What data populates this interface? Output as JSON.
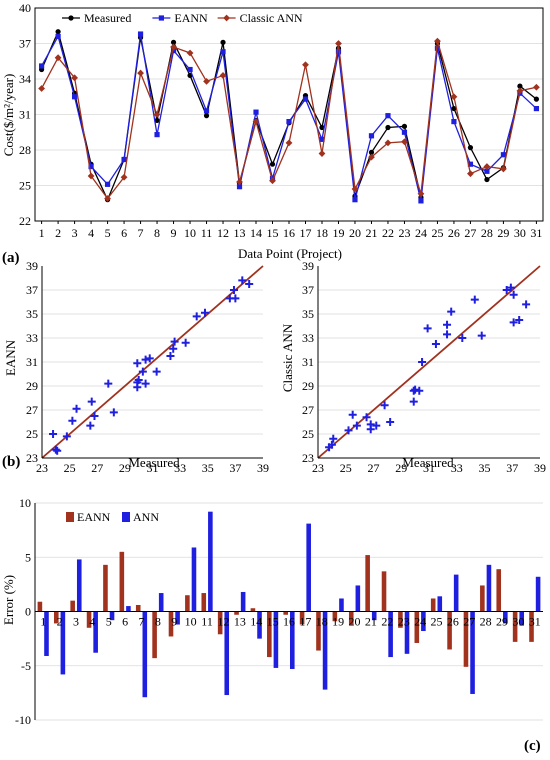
{
  "chart_data": [
    {
      "type": "line",
      "panel": "(a)",
      "xlabel": "Data Point (Project)",
      "ylabel": "Cost($/m²/year)",
      "ylim": [
        22,
        40
      ],
      "yticks": [
        "22",
        "25",
        "28",
        "31",
        "34",
        "37",
        "40"
      ],
      "x": [
        1,
        2,
        3,
        4,
        5,
        6,
        7,
        8,
        9,
        10,
        11,
        12,
        13,
        14,
        15,
        16,
        17,
        18,
        19,
        20,
        21,
        22,
        23,
        24,
        25,
        26,
        27,
        28,
        29,
        30,
        31
      ],
      "legend_position": "top-left",
      "series": [
        {
          "name": "Measured",
          "color": "#000000",
          "marker": "circle",
          "values": [
            34.8,
            38.0,
            32.8,
            26.8,
            23.8,
            27.2,
            37.5,
            30.5,
            37.1,
            34.3,
            30.9,
            37.1,
            25.2,
            30.5,
            26.8,
            30.3,
            32.6,
            29.9,
            36.6,
            24.1,
            27.8,
            29.9,
            30.0,
            24.0,
            37.0,
            31.5,
            28.2,
            25.5,
            26.5,
            33.4,
            32.3
          ]
        },
        {
          "name": "EANN",
          "color": "#1f1fe0",
          "marker": "square",
          "values": [
            35.1,
            37.6,
            32.5,
            26.6,
            25.1,
            27.2,
            37.8,
            29.3,
            36.4,
            34.8,
            31.3,
            36.3,
            24.9,
            31.2,
            25.6,
            30.4,
            32.3,
            28.9,
            36.3,
            23.8,
            29.2,
            30.9,
            29.5,
            23.7,
            36.6,
            30.4,
            26.8,
            26.2,
            27.6,
            32.8,
            31.5
          ]
        },
        {
          "name": "Classic ANN",
          "color": "#a0321e",
          "marker": "diamond",
          "values": [
            33.2,
            35.8,
            34.1,
            25.8,
            23.9,
            25.7,
            34.5,
            31.0,
            36.7,
            36.2,
            33.8,
            34.3,
            25.3,
            30.4,
            25.4,
            28.6,
            35.2,
            27.7,
            37.0,
            24.7,
            27.4,
            28.6,
            28.7,
            24.3,
            37.2,
            32.5,
            26.0,
            26.6,
            26.4,
            33.0,
            33.3
          ]
        }
      ]
    },
    {
      "type": "scatter",
      "panel": "(b)",
      "xlabel": "Measured",
      "ylabel": "EANN",
      "xlim": [
        23,
        39
      ],
      "ylim": [
        23,
        39
      ],
      "xticks": [
        "23",
        "25",
        "27",
        "29",
        "31",
        "33",
        "35",
        "37",
        "39"
      ],
      "yticks": [
        "23",
        "25",
        "27",
        "29",
        "31",
        "33",
        "35",
        "37",
        "39"
      ],
      "diagonal_color": "#a0321e",
      "points": [
        [
          23.8,
          25.0
        ],
        [
          24.0,
          23.7
        ],
        [
          24.1,
          23.6
        ],
        [
          24.8,
          24.8
        ],
        [
          25.2,
          26.1
        ],
        [
          25.5,
          27.1
        ],
        [
          26.5,
          25.7
        ],
        [
          26.6,
          27.7
        ],
        [
          26.8,
          26.5
        ],
        [
          27.8,
          29.2
        ],
        [
          28.2,
          26.8
        ],
        [
          29.9,
          30.9
        ],
        [
          29.9,
          29.3
        ],
        [
          29.9,
          28.9
        ],
        [
          30.0,
          29.5
        ],
        [
          30.3,
          30.2
        ],
        [
          30.5,
          29.2
        ],
        [
          30.5,
          31.2
        ],
        [
          30.8,
          31.3
        ],
        [
          31.3,
          30.2
        ],
        [
          32.3,
          31.5
        ],
        [
          32.5,
          32.1
        ],
        [
          32.6,
          32.7
        ],
        [
          33.4,
          32.6
        ],
        [
          34.2,
          34.8
        ],
        [
          34.8,
          35.1
        ],
        [
          36.6,
          36.3
        ],
        [
          36.9,
          37.0
        ],
        [
          37.0,
          36.3
        ],
        [
          37.5,
          37.8
        ],
        [
          38.0,
          37.5
        ]
      ]
    },
    {
      "type": "scatter",
      "panel": "(b)",
      "xlabel": "Measured",
      "ylabel": "Classic ANN",
      "xlim": [
        23,
        39
      ],
      "ylim": [
        23,
        39
      ],
      "xticks": [
        "23",
        "25",
        "27",
        "29",
        "31",
        "33",
        "35",
        "37",
        "39"
      ],
      "yticks": [
        "23",
        "25",
        "27",
        "29",
        "31",
        "33",
        "35",
        "37",
        "39"
      ],
      "diagonal_color": "#a0321e",
      "points": [
        [
          24.1,
          24.6
        ],
        [
          24.0,
          24.1
        ],
        [
          23.8,
          23.9
        ],
        [
          25.2,
          25.3
        ],
        [
          25.5,
          26.6
        ],
        [
          25.8,
          25.7
        ],
        [
          26.5,
          26.4
        ],
        [
          26.8,
          25.8
        ],
        [
          26.8,
          25.4
        ],
        [
          27.2,
          25.7
        ],
        [
          27.8,
          27.4
        ],
        [
          28.2,
          26.0
        ],
        [
          29.9,
          27.7
        ],
        [
          29.9,
          28.6
        ],
        [
          30.0,
          28.7
        ],
        [
          30.3,
          28.6
        ],
        [
          30.5,
          31.0
        ],
        [
          30.9,
          33.8
        ],
        [
          31.5,
          32.5
        ],
        [
          32.3,
          33.3
        ],
        [
          32.3,
          34.1
        ],
        [
          32.6,
          35.2
        ],
        [
          33.4,
          33.0
        ],
        [
          34.3,
          36.2
        ],
        [
          34.8,
          33.2
        ],
        [
          36.6,
          37.0
        ],
        [
          36.9,
          37.2
        ],
        [
          37.1,
          34.3
        ],
        [
          37.1,
          36.6
        ],
        [
          37.5,
          34.5
        ],
        [
          38.0,
          35.8
        ]
      ]
    },
    {
      "type": "bar",
      "panel": "(c)",
      "xlabel": "",
      "ylabel": "Error (%)",
      "ylim": [
        -10,
        10
      ],
      "yticks": [
        "-10",
        "-5",
        "0",
        "5",
        "10"
      ],
      "categories": [
        "1",
        "2",
        "3",
        "4",
        "5",
        "6",
        "7",
        "8",
        "9",
        "10",
        "11",
        "12",
        "13",
        "14",
        "15",
        "16",
        "17",
        "18",
        "19",
        "20",
        "21",
        "22",
        "23",
        "24",
        "25",
        "26",
        "27",
        "28",
        "29",
        "30",
        "31"
      ],
      "legend_position": "top-left",
      "series": [
        {
          "name": "EANN",
          "color": "#a0321e",
          "values": [
            0.9,
            -1.1,
            1.0,
            -1.5,
            4.3,
            5.5,
            0.6,
            -4.3,
            -2.3,
            1.5,
            1.7,
            -2.1,
            -0.3,
            0.3,
            -4.2,
            -0.3,
            -1.2,
            -3.6,
            -0.9,
            -1.2,
            5.2,
            3.7,
            -1.5,
            -2.9,
            1.2,
            -3.5,
            -5.1,
            2.4,
            3.9,
            -2.8,
            -2.8
          ]
        },
        {
          "name": "ANN",
          "color": "#1f1fe0",
          "values": [
            -4.1,
            -5.8,
            4.8,
            -3.8,
            -0.8,
            0.5,
            -7.9,
            1.7,
            -1.2,
            5.9,
            9.2,
            -7.7,
            1.8,
            -2.5,
            -5.2,
            -5.3,
            8.1,
            -7.2,
            1.2,
            2.4,
            -0.8,
            -4.2,
            -3.9,
            -1.8,
            1.4,
            3.4,
            -7.6,
            4.3,
            -1.1,
            -1.3,
            3.2
          ]
        }
      ]
    }
  ],
  "panel_labels": {
    "a": "(a)",
    "b": "(b)",
    "c": "(c)"
  }
}
